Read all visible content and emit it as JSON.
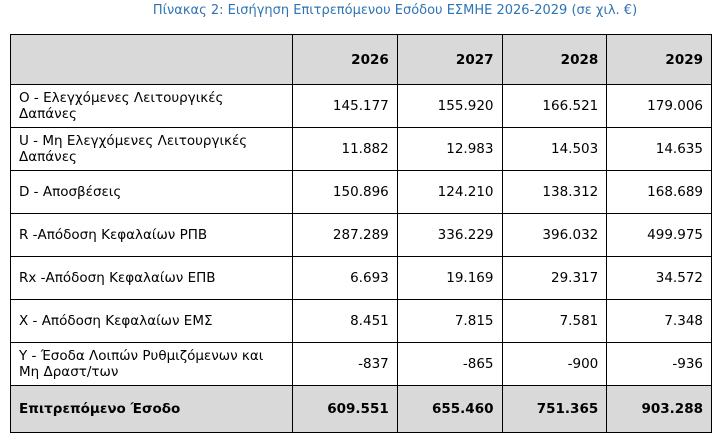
{
  "title": "Πίνακας 2: Εισήγηση Επιτρεπόμενου Εσόδου ΕΣΜΗΕ 2026-2029 (σε χιλ. €)",
  "table": {
    "columns": [
      "2026",
      "2027",
      "2028",
      "2029"
    ],
    "rows": [
      [
        "O - Ελεγχόμενες Λειτουργικές Δαπάνες",
        "145.177",
        "155.920",
        "166.521",
        "179.006"
      ],
      [
        "U - Μη Ελεγχόμενες Λειτουργικές Δαπάνες",
        "11.882",
        "12.983",
        "14.503",
        "14.635"
      ],
      [
        "D - Αποσβέσεις",
        "150.896",
        "124.210",
        "138.312",
        "168.689"
      ],
      [
        "R -Απόδοση Κεφαλαίων ΡΠΒ",
        "287.289",
        "336.229",
        "396.032",
        "499.975"
      ],
      [
        "Rx -Απόδοση Κεφαλαίων ΕΠΒ",
        "6.693",
        "19.169",
        "29.317",
        "34.572"
      ],
      [
        "X - Απόδοση Κεφαλαίων ΕΜΣ",
        "8.451",
        "7.815",
        "7.581",
        "7.348"
      ],
      [
        "Y - Έσοδα Λοιπών Ρυθμιζόμενων και Μη Δραστ/των",
        "-837",
        "-865",
        "-900",
        "-936"
      ]
    ],
    "total": [
      "Επιτρεπόμενο Έσοδο",
      "609.551",
      "655.460",
      "751.365",
      "903.288"
    ]
  }
}
